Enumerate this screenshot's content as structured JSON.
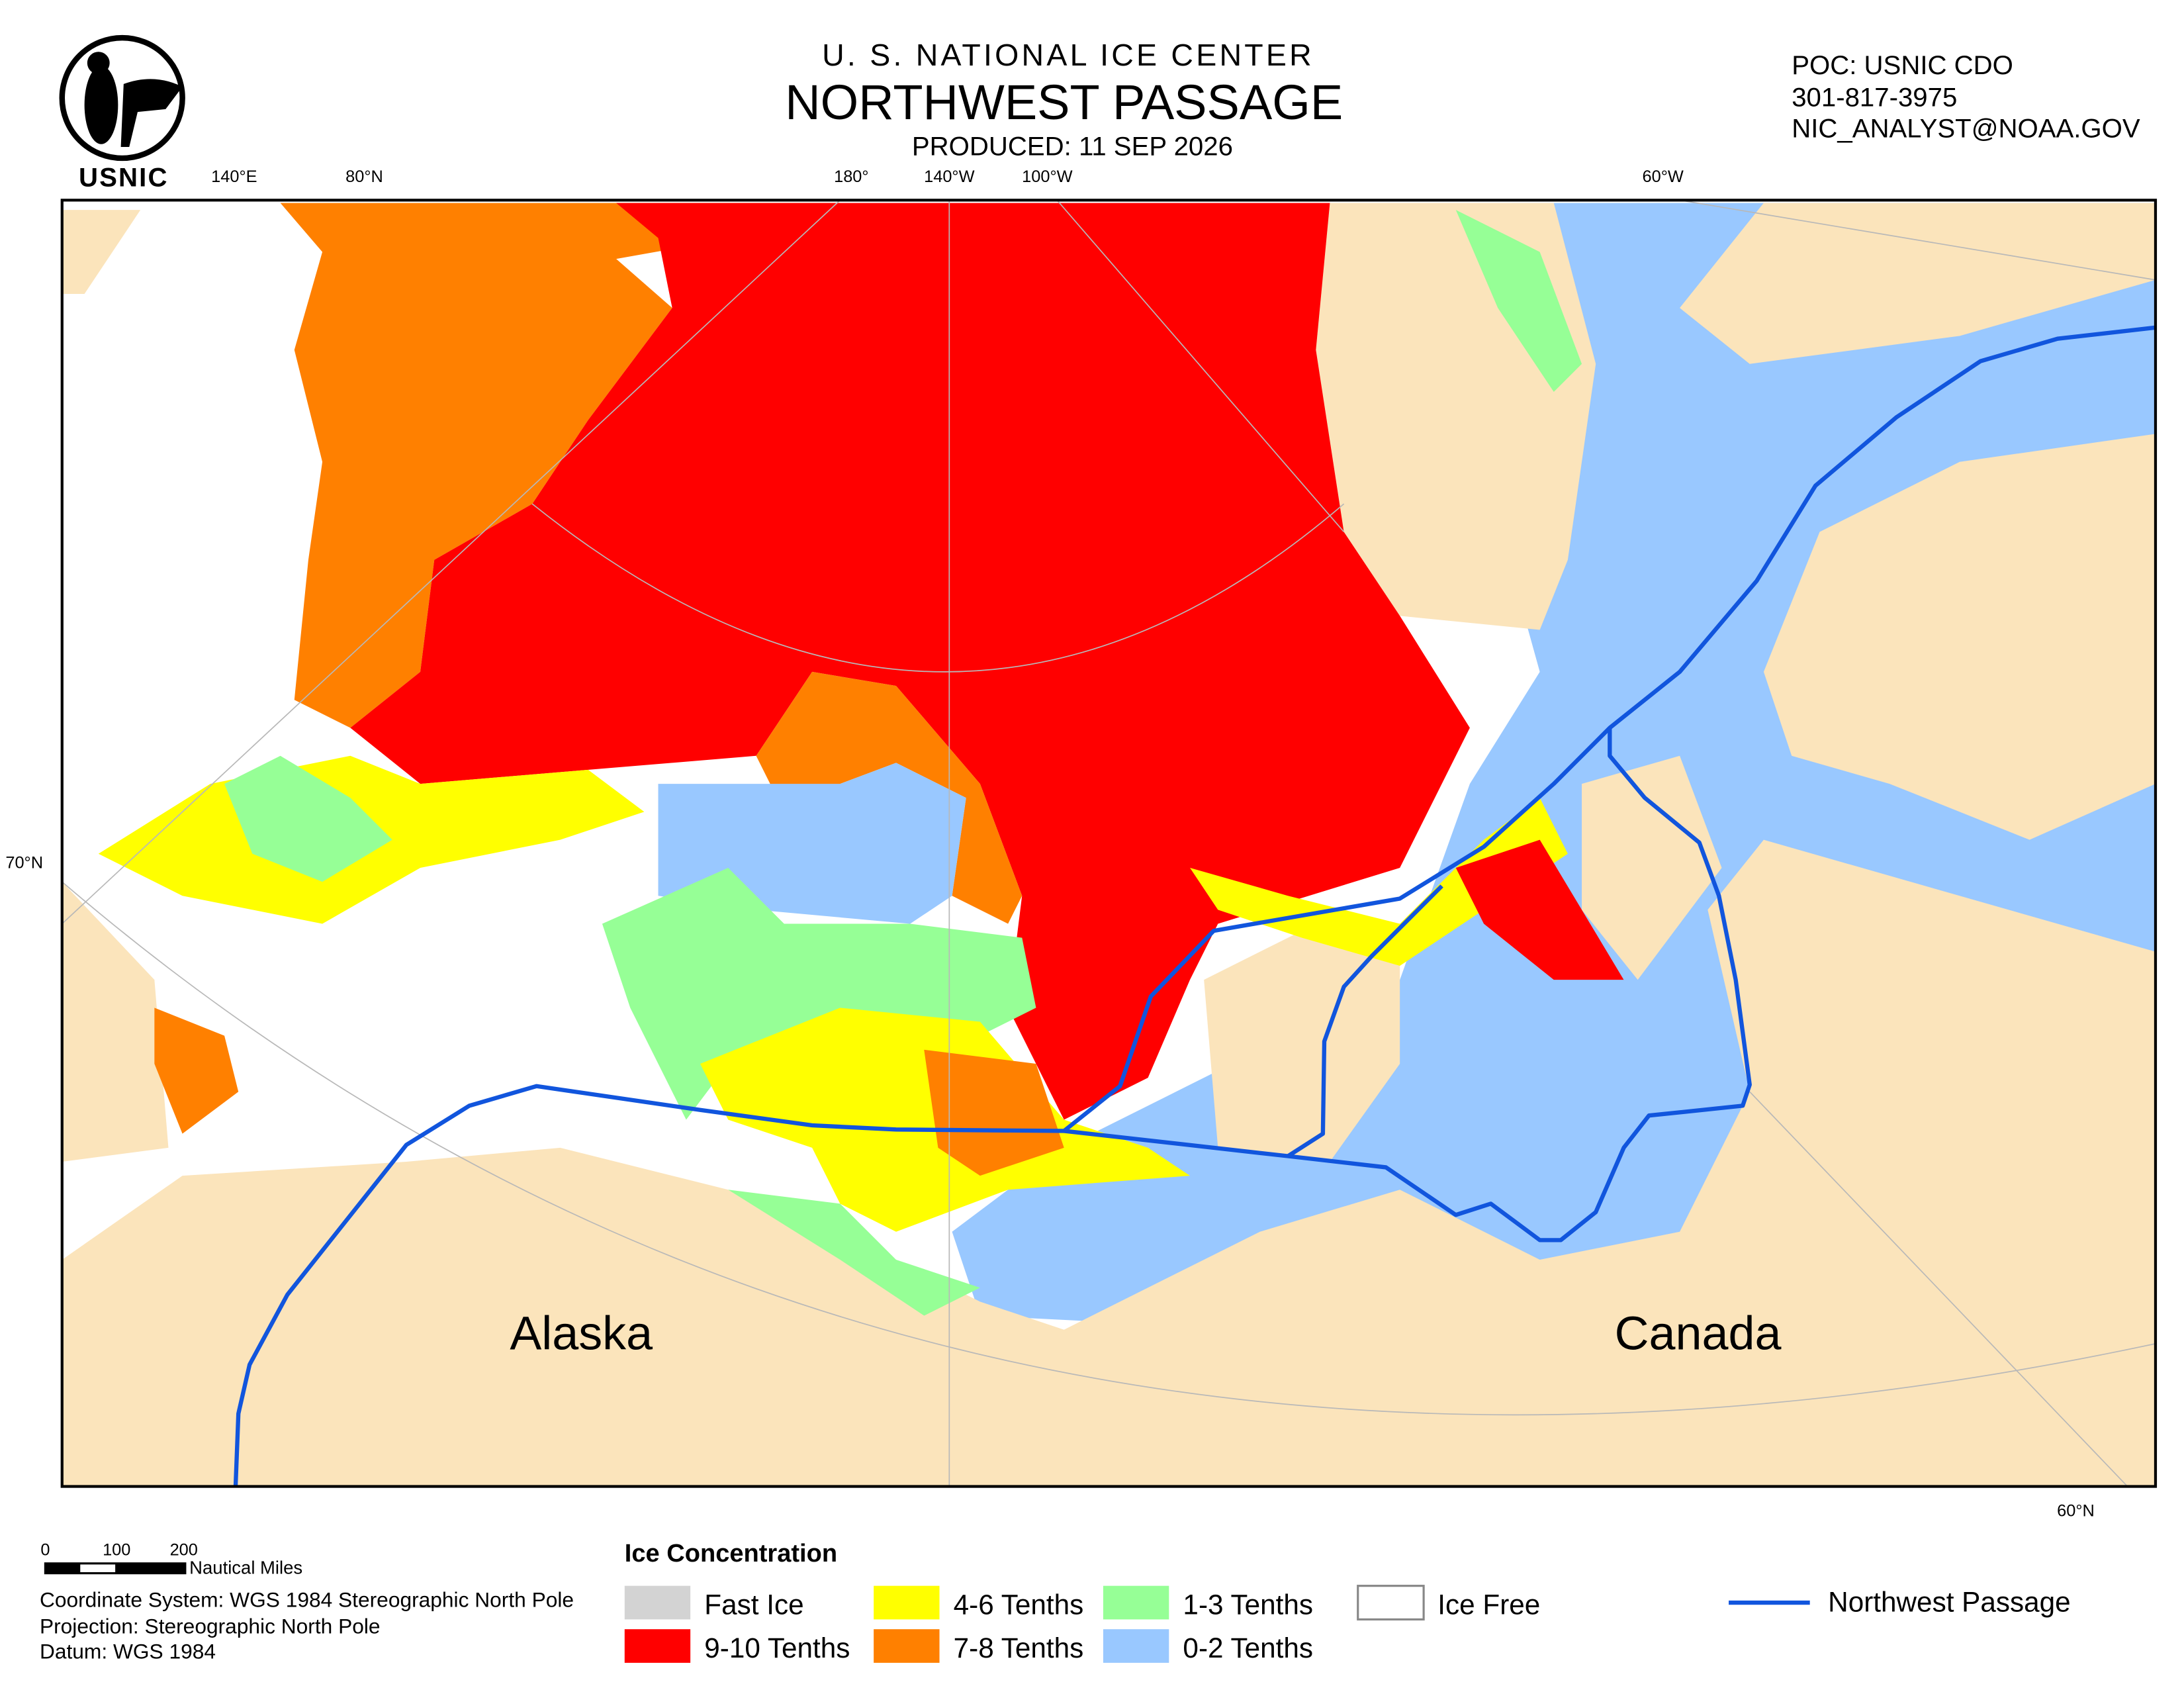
{
  "header": {
    "agency": "U. S. NATIONAL ICE CENTER",
    "title": "NORTHWEST PASSAGE",
    "produced": "PRODUCED: 11 SEP 2026",
    "logo": "USNIC"
  },
  "contact": [
    "POC: USNIC CDO",
    "301-817-3975",
    "NIC_ANALYST@NOAA.GOV"
  ],
  "graticule_labels": [
    "140°E",
    "80°N",
    "180°",
    "140°W",
    "100°W",
    "60°W",
    "70°N",
    "60°N"
  ],
  "place_labels": [
    "Alaska",
    "Canada"
  ],
  "scale_bar": {
    "ticks": [
      "0",
      "100",
      "200"
    ],
    "unit": "Nautical Miles"
  },
  "notes": [
    "Coordinate System: WGS 1984 Stereographic North Pole",
    "Projection: Stereographic North Pole",
    "Datum: WGS 1984"
  ],
  "legend": {
    "title": "Ice Concentration",
    "items": [
      {
        "label": "Fast Ice",
        "color": "#d3d3d3"
      },
      {
        "label": "9-10 Tenths",
        "color": "#ff0000"
      },
      {
        "label": "4-6 Tenths",
        "color": "#ffff00"
      },
      {
        "label": "7-8 Tenths",
        "color": "#ff8000"
      },
      {
        "label": "1-3 Tenths",
        "color": "#96ff96"
      },
      {
        "label": "0-2 Tenths",
        "color": "#99c8ff"
      },
      {
        "label": "Ice Free",
        "color": "#ffffff"
      }
    ],
    "route": {
      "label": "Northwest Passage",
      "color": "#1155dd"
    }
  }
}
